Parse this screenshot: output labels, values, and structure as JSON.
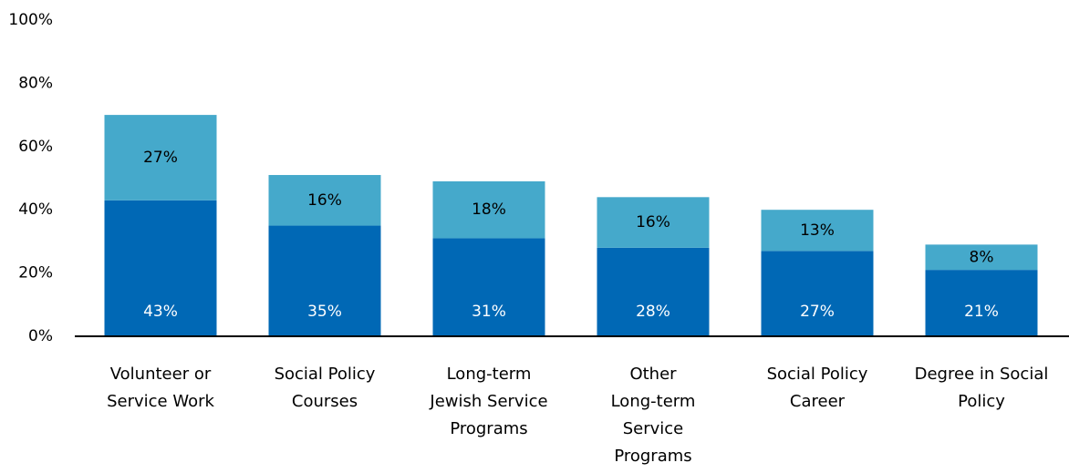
{
  "chart_data": {
    "type": "stacked_bar",
    "categories": [
      [
        "Volunteer or",
        "Service Work"
      ],
      [
        "Social Policy",
        "Courses"
      ],
      [
        "Long-term",
        "Jewish Service",
        "Programs"
      ],
      [
        "Other",
        "Long-term",
        "Service",
        "Programs"
      ],
      [
        "Social Policy",
        "Career"
      ],
      [
        "Degree in Social",
        "Policy"
      ]
    ],
    "series": [
      {
        "color": "#0068b5",
        "label_color": "#ffffff",
        "values": [
          43,
          35,
          31,
          28,
          27,
          21
        ],
        "value_labels": [
          "43%",
          "35%",
          "31%",
          "28%",
          "27%",
          "21%"
        ]
      },
      {
        "color": "#45a9cb",
        "label_color": "#000000",
        "values": [
          27,
          16,
          18,
          16,
          13,
          8
        ],
        "value_labels": [
          "27%",
          "16%",
          "18%",
          "16%",
          "13%",
          "8%"
        ]
      }
    ],
    "ylim": [
      0,
      100
    ],
    "yticks": [
      {
        "value": 0,
        "label": "0%"
      },
      {
        "value": 20,
        "label": "20%"
      },
      {
        "value": 40,
        "label": "40%"
      },
      {
        "value": 60,
        "label": "60%"
      },
      {
        "value": 80,
        "label": "80%"
      },
      {
        "value": 100,
        "label": "100%"
      }
    ],
    "grid": false
  }
}
